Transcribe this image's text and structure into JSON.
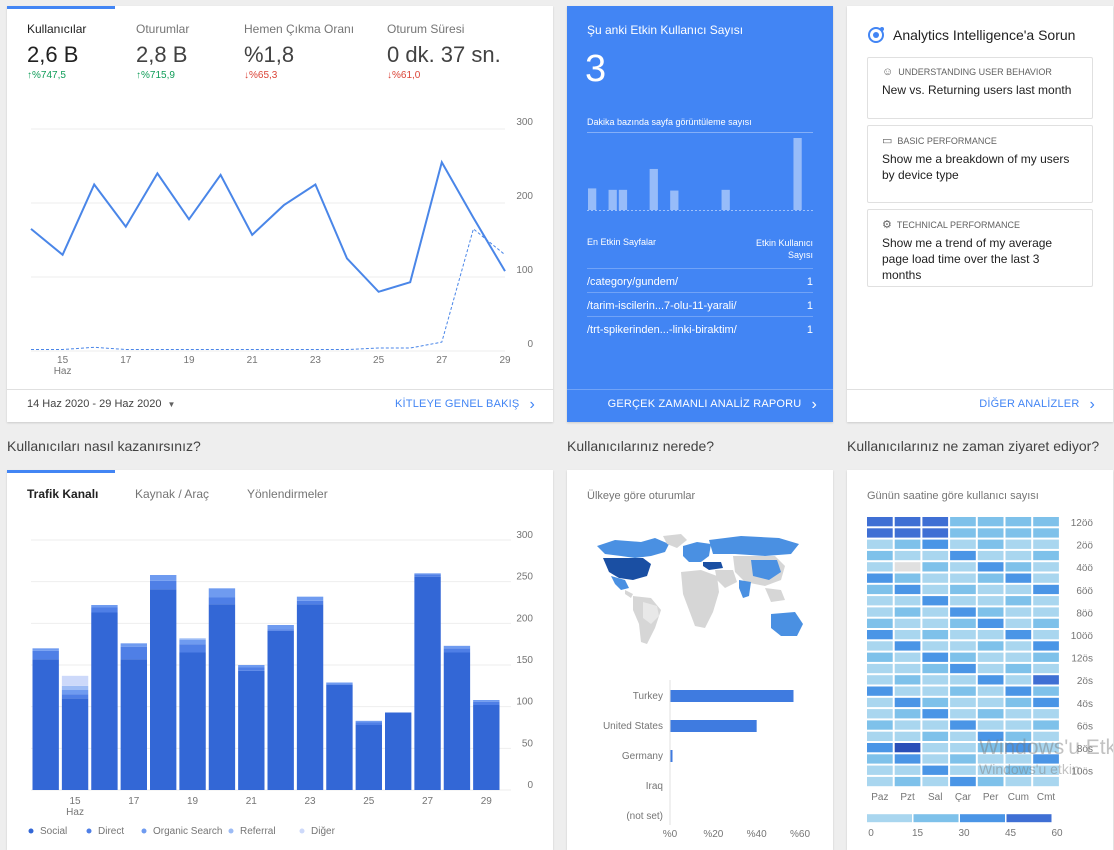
{
  "overview": {
    "metrics": [
      {
        "label": "Kullanıcılar",
        "value": "2,6 B",
        "delta": "%747,5",
        "dir": "up"
      },
      {
        "label": "Oturumlar",
        "value": "2,8 B",
        "delta": "%715,9",
        "dir": "up"
      },
      {
        "label": "Hemen Çıkma Oranı",
        "value": "%1,8",
        "delta": "%65,3",
        "dir": "down"
      },
      {
        "label": "Oturum Süresi",
        "value": "0 dk. 37 sn.",
        "delta": "%61,0",
        "dir": "down"
      }
    ],
    "date_range": "14 Haz 2020 - 29 Haz 2020",
    "link": "KİTLEYE GENEL BAKIŞ"
  },
  "realtime": {
    "title": "Şu anki Etkin Kullanıcı Sayısı",
    "count": "3",
    "subtitle": "Dakika bazında sayfa görüntüleme sayısı",
    "pages_header": "En Etkin Sayfalar",
    "users_header": "Etkin Kullanıcı Sayısı",
    "pages": [
      {
        "path": "/category/gundem/",
        "users": "1"
      },
      {
        "path": "/tarim-iscilerin...7-olu-11-yarali/",
        "users": "1"
      },
      {
        "path": "/trt-spikerinden...-linki-biraktim/",
        "users": "1"
      }
    ],
    "minute_bars": [
      0.3,
      0,
      0.28,
      0.28,
      0,
      0,
      0.57,
      0,
      0.27,
      0,
      0,
      0,
      0,
      0.28,
      0,
      0,
      0,
      0,
      0,
      0,
      1.0,
      0
    ],
    "link": "GERÇEK ZAMANLI ANALİZ RAPORU"
  },
  "intelligence": {
    "title": "Analytics Intelligence'a Sorun",
    "items": [
      {
        "category": "UNDERSTANDING USER BEHAVIOR",
        "question": "New vs. Returning users last month",
        "icon": "user-icon"
      },
      {
        "category": "BASIC PERFORMANCE",
        "question": "Show me a breakdown of my users by device type",
        "icon": "device-icon"
      },
      {
        "category": "TECHNICAL PERFORMANCE",
        "question": "Show me a trend of my average page load time over the last 3 months",
        "icon": "gear-icon"
      }
    ],
    "link": "DİĞER ANALİZLER"
  },
  "sections": {
    "acquire": "Kullanıcıları nasıl kazanırsınız?",
    "where": "Kullanıcılarınız nerede?",
    "when": "Kullanıcılarınız ne zaman ziyaret ediyor?"
  },
  "acquisition": {
    "tabs": [
      "Trafik Kanalı",
      "Kaynak / Araç",
      "Yönlendirmeler"
    ]
  },
  "geo": {
    "title": "Ülkeye göre oturumlar"
  },
  "heatmap": {
    "title": "Günün saatine göre kullanıcı sayısı",
    "days": [
      "Paz",
      "Pzt",
      "Sal",
      "Çar",
      "Per",
      "Cum",
      "Cmt"
    ],
    "hour_labels": [
      "12öö",
      "2öö",
      "4öö",
      "6öö",
      "8öö",
      "10öö",
      "12ös",
      "2ös",
      "4ös",
      "6ös",
      "8ös",
      "10ös"
    ],
    "scale": [
      "0",
      "15",
      "30",
      "45",
      "60"
    ],
    "watermark": [
      "Windows'u Etk",
      "Windows'u etkin"
    ]
  },
  "colors": {
    "primary": "#4285f4",
    "dark_blue": "#3367d6"
  },
  "chart_data": [
    {
      "type": "line",
      "x": [
        "14",
        "15",
        "16",
        "17",
        "18",
        "19",
        "20",
        "21",
        "22",
        "23",
        "24",
        "25",
        "26",
        "27",
        "28",
        "29"
      ],
      "x_tick_labels": [
        "15",
        "17",
        "19",
        "21",
        "23",
        "25",
        "27",
        "29"
      ],
      "x_sublabel": "Haz",
      "series": [
        {
          "values": [
            165,
            130,
            225,
            168,
            240,
            178,
            238,
            157,
            197,
            225,
            125,
            80,
            93,
            255,
            180,
            108
          ]
        },
        {
          "values": [
            2,
            2,
            5,
            2,
            2,
            2,
            2,
            2,
            2,
            2,
            2,
            4,
            4,
            12,
            165,
            130
          ],
          "dashed": true
        }
      ],
      "ylim": [
        0,
        300
      ],
      "yticks": [
        0,
        100,
        200,
        300
      ]
    },
    {
      "type": "bar",
      "x": [
        "14",
        "15",
        "16",
        "17",
        "18",
        "19",
        "20",
        "21",
        "22",
        "23",
        "24",
        "25",
        "26",
        "27",
        "28",
        "29"
      ],
      "x_tick_labels": [
        "15",
        "17",
        "19",
        "21",
        "23",
        "25",
        "27",
        "29"
      ],
      "x_sublabel": "Haz",
      "series": [
        {
          "name": "Social",
          "values": [
            157,
            110,
            213,
            157,
            241,
            165,
            223,
            143,
            191,
            223,
            126,
            78,
            93,
            256,
            165,
            102
          ]
        },
        {
          "name": "Direct",
          "values": [
            10,
            5,
            6,
            15,
            10,
            10,
            8,
            4,
            2,
            4,
            1,
            3,
            0,
            3,
            5,
            4
          ]
        },
        {
          "name": "Organic Search",
          "values": [
            3,
            5,
            3,
            4,
            7,
            5,
            11,
            3,
            5,
            5,
            2,
            2,
            0,
            1,
            3,
            2
          ]
        },
        {
          "name": "Referral",
          "values": [
            0,
            5,
            0,
            0,
            0,
            2,
            0,
            0,
            0,
            0,
            0,
            0,
            0,
            0,
            0,
            0
          ]
        },
        {
          "name": "Diğer",
          "values": [
            0,
            12,
            0,
            0,
            0,
            0,
            0,
            0,
            0,
            0,
            0,
            0,
            0,
            0,
            0,
            0
          ]
        }
      ],
      "series_colors": [
        "#3367d6",
        "#4f7fe6",
        "#6f9bf0",
        "#9cbbf5",
        "#cdd9fa"
      ],
      "ylim": [
        0,
        300
      ],
      "yticks": [
        0,
        50,
        100,
        150,
        200,
        250,
        300
      ]
    },
    {
      "type": "bar",
      "orientation": "horizontal",
      "categories": [
        "Turkey",
        "United States",
        "Germany",
        "Iraq",
        "(not set)"
      ],
      "values": [
        57,
        40,
        1,
        0,
        0
      ],
      "x_tick_labels": [
        "%0",
        "%20",
        "%40",
        "%60"
      ],
      "xlim": [
        0,
        60
      ]
    },
    {
      "type": "heatmap",
      "rows": 24,
      "columns": 7,
      "scale_range": [
        0,
        60
      ]
    }
  ]
}
